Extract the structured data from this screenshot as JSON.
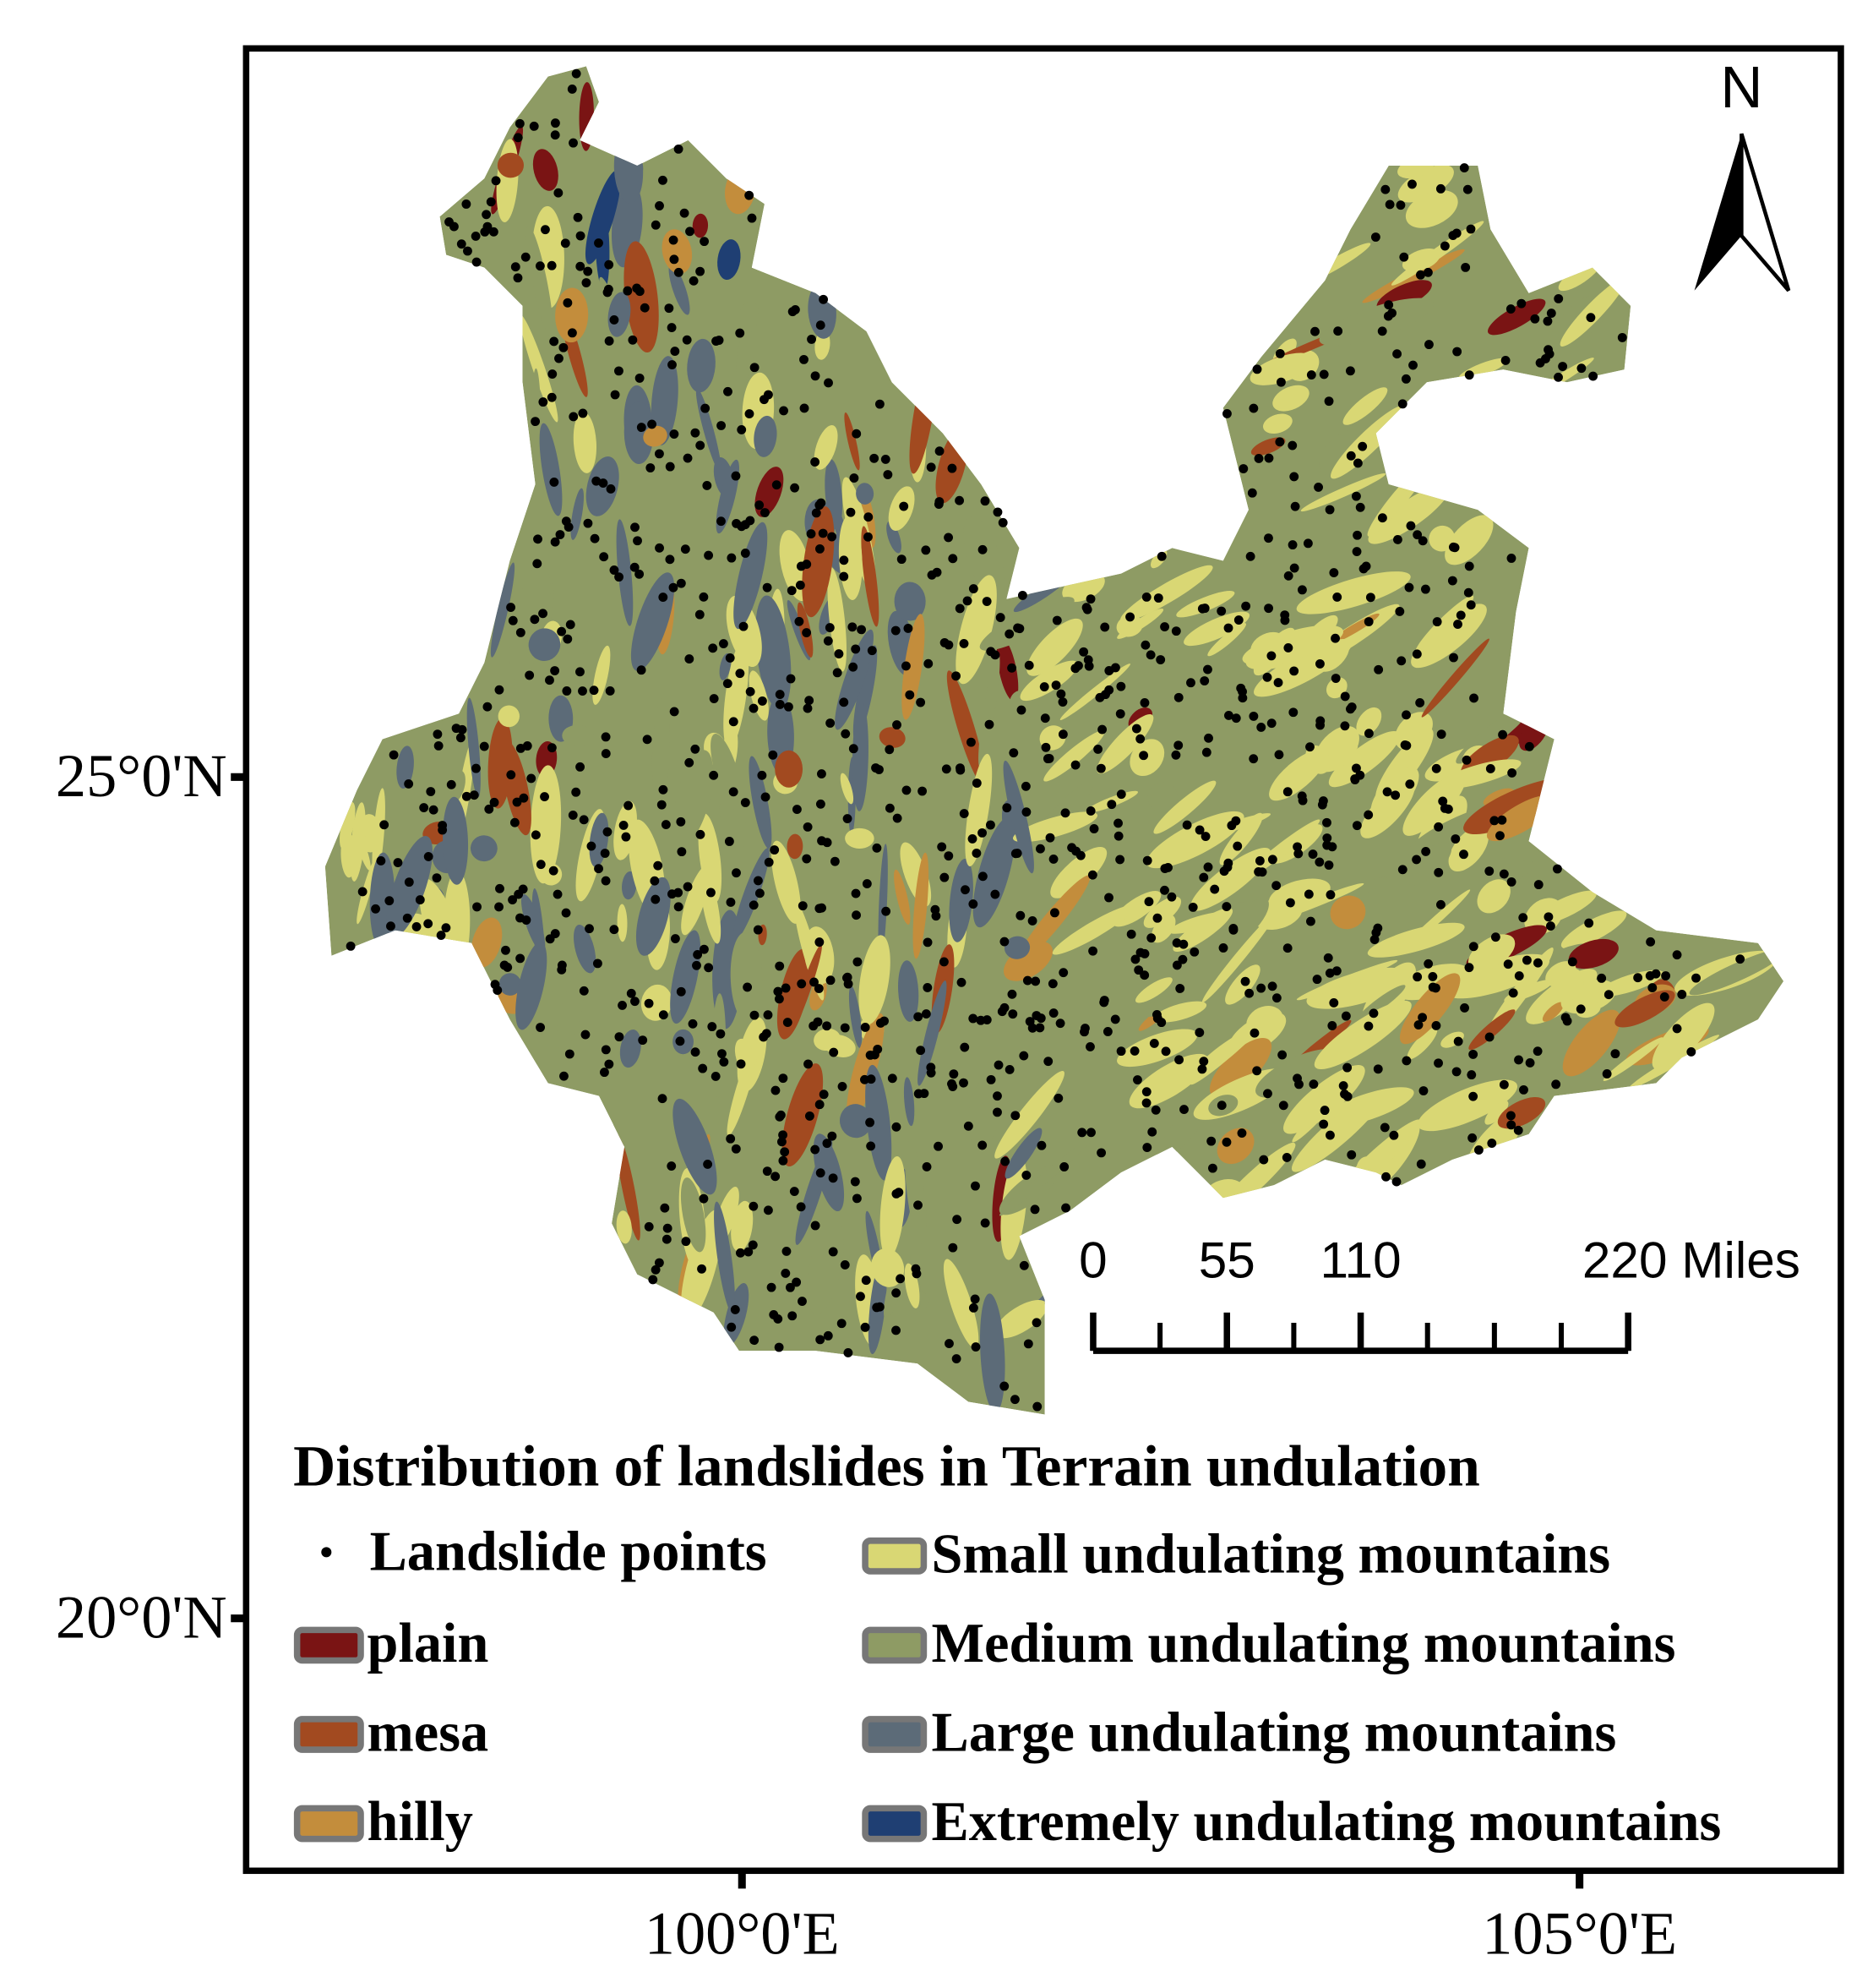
{
  "map": {
    "title": "Distribution of landslides in Terrain undulation",
    "lon_range": [
      97.04,
      106.56
    ],
    "lat_range": [
      18.5,
      29.33
    ],
    "lon_ticks": [
      {
        "value": 100,
        "label": "100°0'E"
      },
      {
        "value": 105,
        "label": "105°0'E"
      }
    ],
    "lat_ticks": [
      {
        "value": 25,
        "label": "25°0'N"
      },
      {
        "value": 20,
        "label": "20°0'N"
      }
    ],
    "north_label": "N",
    "scale_bar": {
      "ticks": [
        0,
        55,
        110,
        {
          "value": 220,
          "label": "220 Miles"
        }
      ]
    },
    "legend": {
      "points": {
        "label": "Landslide points",
        "color": "#000000"
      },
      "classes": [
        {
          "name": "plain",
          "color": "#7a1414"
        },
        {
          "name": "mesa",
          "color": "#a24a20"
        },
        {
          "name": "hilly",
          "color": "#c38d3c"
        },
        {
          "name": "Small undulating mountains",
          "color": "#d9d774"
        },
        {
          "name": "Medium undulating mountains",
          "color": "#8e9b64"
        },
        {
          "name": "Large undulating mountains",
          "color": "#5c6b78"
        },
        {
          "name": "Extremely undulating mountains",
          "color": "#1f3f73"
        }
      ]
    }
  }
}
